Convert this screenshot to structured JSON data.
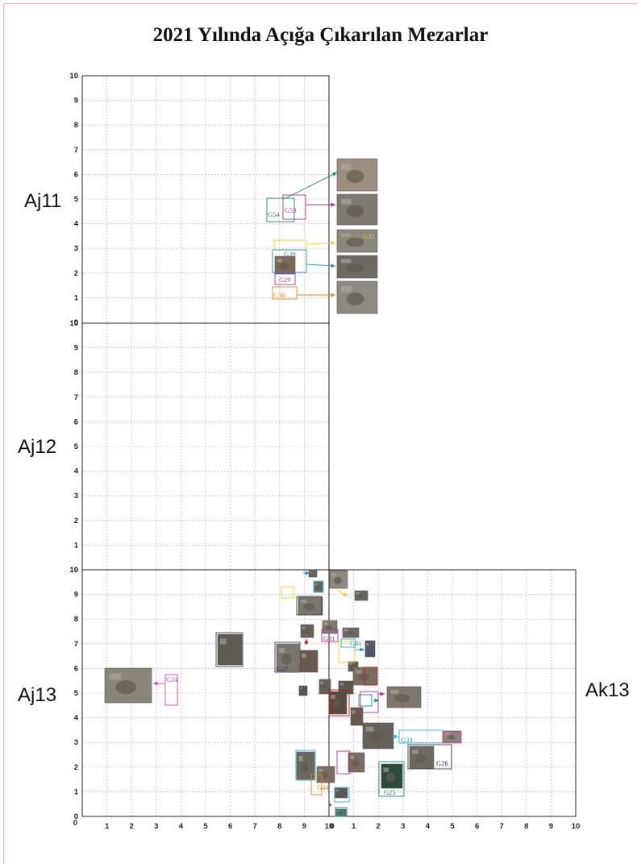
{
  "title": "2021 Yılında Açığa Çıkarılan Mezarlar",
  "grid_labels": {
    "aj11": "Aj11",
    "aj12": "Aj12",
    "aj13": "Aj13",
    "ak13": "Ak13"
  },
  "axis_ticks": [
    "0",
    "1",
    "2",
    "3",
    "4",
    "5",
    "6",
    "7",
    "8",
    "9",
    "10"
  ],
  "colors": {
    "teal": "#1a8c6a",
    "magenta": "#b03090",
    "yellow": "#e8d820",
    "blue": "#2a8fc8",
    "orange": "#e08a20",
    "red": "#c01818",
    "navy": "#203060",
    "cyan": "#30b0c8",
    "pink": "#e040a0"
  },
  "graves": [
    {
      "id": "g54",
      "label": "G54",
      "color": "#1a8c6a"
    },
    {
      "id": "g53",
      "label": "G53",
      "color": "#b03090"
    },
    {
      "id": "g32",
      "label": "G32",
      "color": "#e8d820"
    },
    {
      "id": "g39",
      "label": "G39",
      "color": "#2a8fc8"
    },
    {
      "id": "g29",
      "label": "G29",
      "color": "#b03090"
    },
    {
      "id": "g36",
      "label": "G36",
      "color": "#e08a20"
    },
    {
      "id": "g24",
      "label": "G24",
      "color": "#e040a0"
    },
    {
      "id": "g27",
      "label": "G27",
      "color": "#203060"
    },
    {
      "id": "g31",
      "label": "G31",
      "color": "#b03090"
    },
    {
      "id": "g41",
      "label": "G41",
      "color": "#e8d820"
    },
    {
      "id": "g33",
      "label": "G33",
      "color": "#2a8fc8"
    },
    {
      "id": "g26",
      "label": "G26",
      "color": "#203060"
    },
    {
      "id": "g44",
      "label": "G44",
      "color": "#e08a20"
    },
    {
      "id": "g25",
      "label": "G25",
      "color": "#1a8c6a"
    }
  ]
}
